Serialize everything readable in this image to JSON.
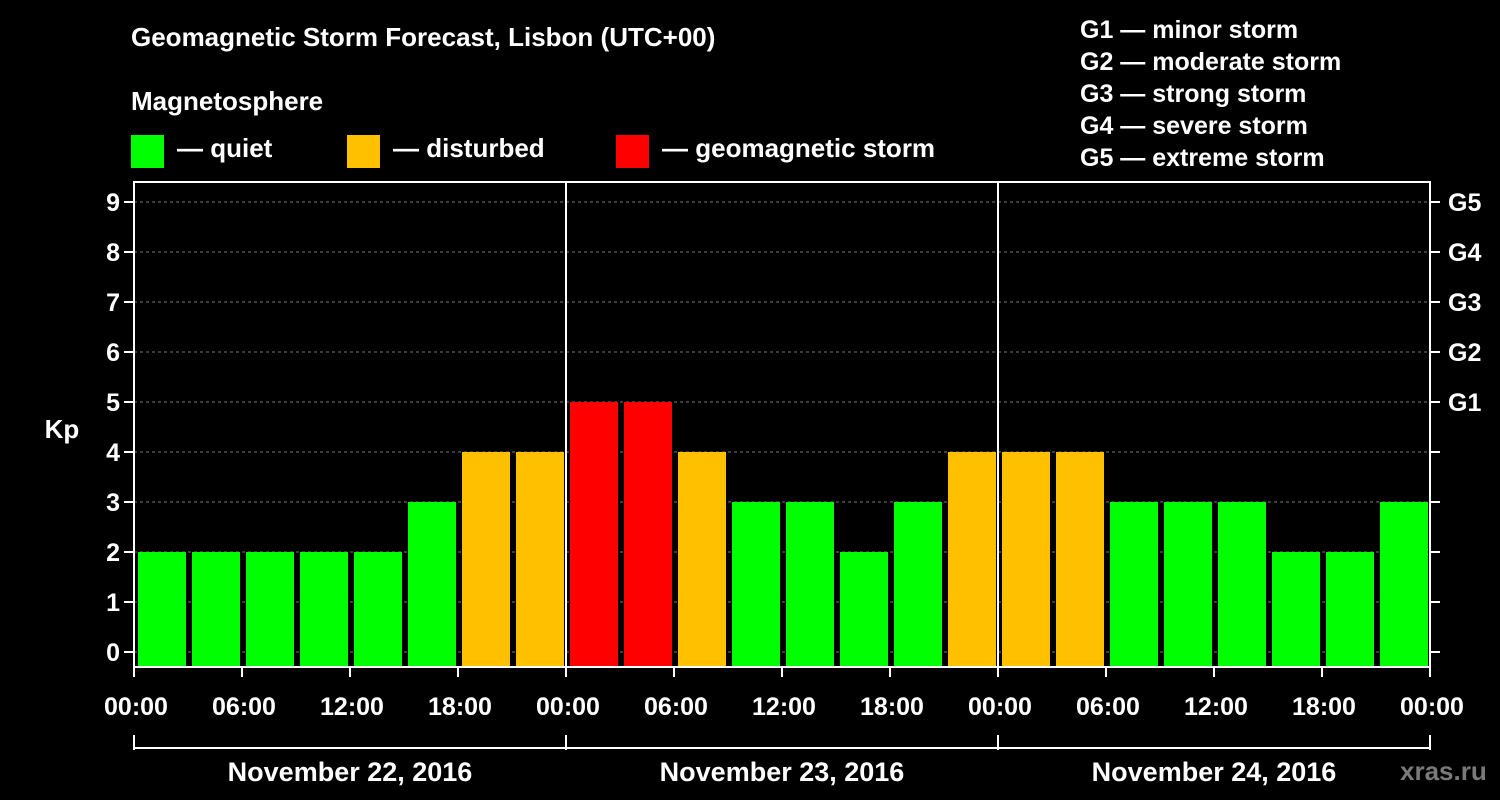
{
  "header": {
    "title": "Geomagnetic Storm Forecast, Lisbon (UTC+00)",
    "subtitle": "Magnetosphere"
  },
  "legend": [
    {
      "label": "— quiet",
      "color": "#00ff00"
    },
    {
      "label": "— disturbed",
      "color": "#ffc000"
    },
    {
      "label": "— geomagnetic storm",
      "color": "#ff0000"
    }
  ],
  "storm_scale": [
    "G1 — minor storm",
    "G2 — moderate storm",
    "G3 — strong storm",
    "G4 — severe storm",
    "G5 — extreme storm"
  ],
  "watermark": "xras.ru",
  "chart_data": {
    "type": "bar",
    "title": "Geomagnetic Storm Forecast, Lisbon (UTC+00)",
    "ylabel": "Kp",
    "ylim": [
      0,
      9
    ],
    "yticks": [
      "0",
      "1",
      "2",
      "3",
      "4",
      "5",
      "6",
      "7",
      "8",
      "9"
    ],
    "right_axis": [
      {
        "kp": 5,
        "label": "G1"
      },
      {
        "kp": 6,
        "label": "G2"
      },
      {
        "kp": 7,
        "label": "G3"
      },
      {
        "kp": 8,
        "label": "G4"
      },
      {
        "kp": 9,
        "label": "G5"
      }
    ],
    "xtick_labels": [
      "00:00",
      "06:00",
      "12:00",
      "18:00",
      "00:00",
      "06:00",
      "12:00",
      "18:00",
      "00:00",
      "06:00",
      "12:00",
      "18:00",
      "00:00"
    ],
    "days": [
      "November 22, 2016",
      "November 23, 2016",
      "November 24, 2016"
    ],
    "values": [
      2,
      2,
      2,
      2,
      2,
      3,
      4,
      4,
      5,
      5,
      4,
      3,
      3,
      2,
      3,
      4,
      4,
      4,
      3,
      3,
      3,
      2,
      2,
      3
    ],
    "category_colors": {
      "quiet": "#00ff00",
      "disturbed": "#ffc000",
      "storm": "#ff0000"
    }
  }
}
